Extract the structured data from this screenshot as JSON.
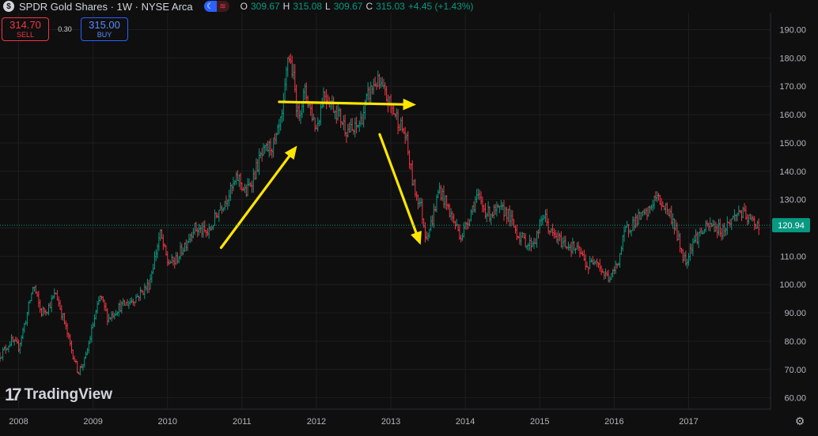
{
  "header": {
    "symbol_icon": "$",
    "title": "SPDR Gold Shares · 1W · NYSE Arca",
    "pill_left": "☾",
    "pill_right": "≋",
    "o_label": "O",
    "o_value": "309.67",
    "h_label": "H",
    "h_value": "315.08",
    "l_label": "L",
    "l_value": "309.67",
    "c_label": "C",
    "c_value": "315.03",
    "change": "+4.45 (+1.43%)"
  },
  "trade": {
    "sell_price": "314.70",
    "sell_label": "SELL",
    "spread": "0.30",
    "buy_price": "315.00",
    "buy_label": "BUY"
  },
  "brand": {
    "logo_mark": "17",
    "logo_text": "TradingView"
  },
  "colors": {
    "background": "#0f0f0f",
    "up": "#089981",
    "down": "#f23645",
    "arrow": "#ffe600",
    "grid": "#1e1e1e",
    "last_price": "#089981"
  },
  "chart_data": {
    "type": "ohlc",
    "title": "SPDR Gold Shares · 1W · NYSE Arca",
    "x_ticks": [
      "2008",
      "2009",
      "2010",
      "2011",
      "2012",
      "2013",
      "2014",
      "2015",
      "2016",
      "2017"
    ],
    "y_ticks": [
      60,
      70,
      80,
      90,
      100,
      110,
      120,
      130,
      140,
      150,
      160,
      170,
      180,
      190
    ],
    "ylim": [
      56,
      196
    ],
    "xlim": [
      2007.75,
      2018.1
    ],
    "last_price": 120.94,
    "last_price_label": "120.94",
    "grid": true,
    "price_path": [
      [
        2007.75,
        75
      ],
      [
        2007.9,
        80
      ],
      [
        2008.0,
        78
      ],
      [
        2008.1,
        88
      ],
      [
        2008.2,
        100
      ],
      [
        2008.3,
        90
      ],
      [
        2008.4,
        92
      ],
      [
        2008.5,
        97
      ],
      [
        2008.6,
        88
      ],
      [
        2008.7,
        78
      ],
      [
        2008.8,
        69
      ],
      [
        2008.9,
        74
      ],
      [
        2009.0,
        86
      ],
      [
        2009.1,
        96
      ],
      [
        2009.2,
        88
      ],
      [
        2009.35,
        92
      ],
      [
        2009.5,
        94
      ],
      [
        2009.6,
        96
      ],
      [
        2009.75,
        100
      ],
      [
        2009.9,
        118
      ],
      [
        2010.0,
        108
      ],
      [
        2010.1,
        108
      ],
      [
        2010.25,
        115
      ],
      [
        2010.35,
        120
      ],
      [
        2010.45,
        119
      ],
      [
        2010.55,
        118
      ],
      [
        2010.7,
        127
      ],
      [
        2010.85,
        133
      ],
      [
        2010.95,
        138
      ],
      [
        2011.05,
        132
      ],
      [
        2011.15,
        138
      ],
      [
        2011.25,
        145
      ],
      [
        2011.35,
        148
      ],
      [
        2011.45,
        150
      ],
      [
        2011.55,
        160
      ],
      [
        2011.62,
        182
      ],
      [
        2011.68,
        175
      ],
      [
        2011.75,
        160
      ],
      [
        2011.85,
        168
      ],
      [
        2011.92,
        162
      ],
      [
        2012.0,
        155
      ],
      [
        2012.1,
        168
      ],
      [
        2012.2,
        164
      ],
      [
        2012.3,
        160
      ],
      [
        2012.4,
        155
      ],
      [
        2012.5,
        154
      ],
      [
        2012.6,
        158
      ],
      [
        2012.7,
        167
      ],
      [
        2012.8,
        172
      ],
      [
        2012.9,
        168
      ],
      [
        2013.0,
        163
      ],
      [
        2013.1,
        158
      ],
      [
        2013.2,
        152
      ],
      [
        2013.3,
        135
      ],
      [
        2013.4,
        128
      ],
      [
        2013.47,
        117
      ],
      [
        2013.55,
        122
      ],
      [
        2013.65,
        134
      ],
      [
        2013.75,
        128
      ],
      [
        2013.85,
        122
      ],
      [
        2013.95,
        117
      ],
      [
        2014.05,
        124
      ],
      [
        2014.15,
        131
      ],
      [
        2014.3,
        125
      ],
      [
        2014.45,
        126
      ],
      [
        2014.55,
        126
      ],
      [
        2014.7,
        118
      ],
      [
        2014.85,
        114
      ],
      [
        2014.95,
        116
      ],
      [
        2015.05,
        125
      ],
      [
        2015.15,
        118
      ],
      [
        2015.3,
        115
      ],
      [
        2015.45,
        113
      ],
      [
        2015.55,
        111
      ],
      [
        2015.65,
        106
      ],
      [
        2015.75,
        110
      ],
      [
        2015.85,
        104
      ],
      [
        2015.95,
        102
      ],
      [
        2016.05,
        108
      ],
      [
        2016.15,
        119
      ],
      [
        2016.3,
        123
      ],
      [
        2016.45,
        125
      ],
      [
        2016.55,
        131
      ],
      [
        2016.7,
        127
      ],
      [
        2016.8,
        122
      ],
      [
        2016.9,
        112
      ],
      [
        2016.96,
        108
      ],
      [
        2017.05,
        115
      ],
      [
        2017.15,
        118
      ],
      [
        2017.3,
        121
      ],
      [
        2017.45,
        119
      ],
      [
        2017.55,
        122
      ],
      [
        2017.68,
        126
      ],
      [
        2017.8,
        123
      ],
      [
        2017.95,
        121
      ]
    ],
    "annotations": [
      {
        "type": "arrow",
        "from": [
          2010.72,
          113
        ],
        "to": [
          2011.74,
          149
        ]
      },
      {
        "type": "arrow",
        "from": [
          2011.5,
          164.5
        ],
        "to": [
          2013.34,
          163.5
        ]
      },
      {
        "type": "arrow",
        "from": [
          2012.85,
          153
        ],
        "to": [
          2013.4,
          114
        ]
      }
    ]
  }
}
